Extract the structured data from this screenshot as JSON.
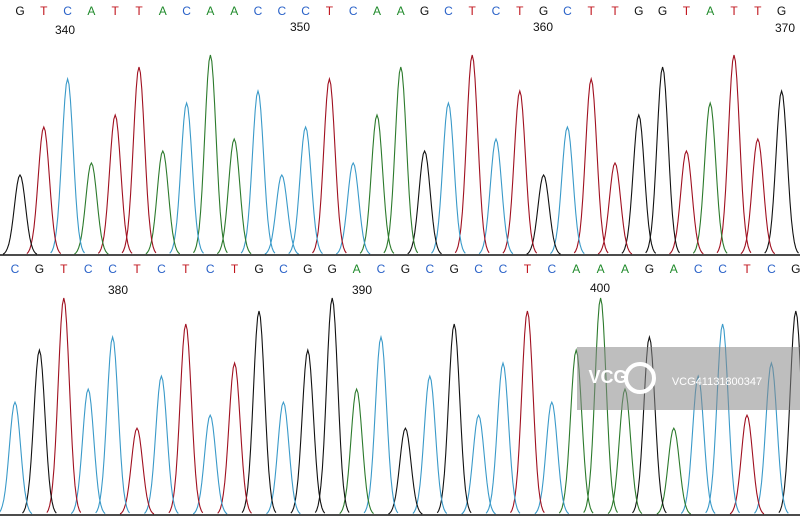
{
  "rows": [
    {
      "bases": [
        "G",
        "T",
        "C",
        "A",
        "T",
        "T",
        "A",
        "C",
        "A",
        "A",
        "C",
        "C",
        "C",
        "T",
        "C",
        "A",
        "A",
        "G",
        "C",
        "T",
        "C",
        "T",
        "G",
        "C",
        "T",
        "T",
        "G",
        "G",
        "T",
        "A",
        "T",
        "T",
        "G"
      ],
      "positions": [
        "340",
        "350",
        "360",
        "370"
      ]
    },
    {
      "bases": [
        "C",
        "G",
        "T",
        "C",
        "C",
        "T",
        "C",
        "T",
        "C",
        "T",
        "G",
        "C",
        "G",
        "G",
        "A",
        "C",
        "G",
        "C",
        "G",
        "C",
        "C",
        "T",
        "C",
        "A",
        "A",
        "A",
        "G",
        "A",
        "C",
        "C",
        "T",
        "C",
        "G"
      ],
      "positions": [
        "380",
        "390",
        "400"
      ]
    }
  ],
  "watermark": {
    "logo": "VCG",
    "id": "VCG41131800347"
  }
}
